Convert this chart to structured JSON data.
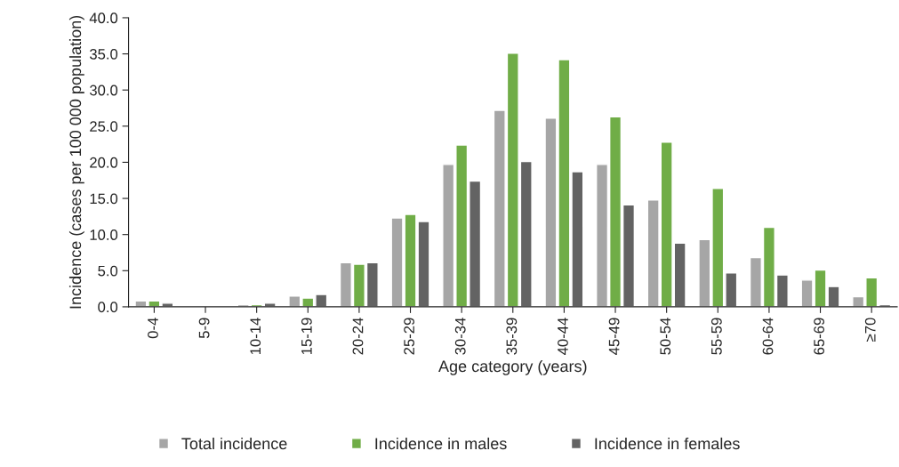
{
  "chart_data": {
    "type": "bar",
    "xlabel": "Age category (years)",
    "ylabel": "Incidence (cases per 100 000 population)",
    "categories": [
      "0-4",
      "5-9",
      "10-14",
      "15-19",
      "20-24",
      "25-29",
      "30-34",
      "35-39",
      "40-44",
      "45-49",
      "50-54",
      "55-59",
      "60-64",
      "65-69",
      "≥70"
    ],
    "series": [
      {
        "name": "Total incidence",
        "color": "#a6a6a6",
        "values": [
          0.8,
          null,
          0.3,
          1.5,
          6.1,
          12.3,
          19.7,
          27.2,
          26.1,
          19.7,
          14.8,
          9.3,
          6.8,
          3.7,
          1.4
        ]
      },
      {
        "name": "Incidence in males",
        "color": "#70ad47",
        "values": [
          0.8,
          null,
          0.3,
          1.2,
          5.9,
          12.8,
          22.4,
          35.1,
          34.2,
          26.3,
          22.8,
          16.4,
          11.0,
          5.1,
          4.0
        ]
      },
      {
        "name": "Incidence in females",
        "color": "#636363",
        "values": [
          0.5,
          null,
          0.5,
          1.7,
          6.1,
          11.8,
          17.4,
          20.1,
          18.7,
          14.1,
          8.8,
          4.7,
          4.4,
          2.8,
          0.3
        ]
      }
    ],
    "ylim": [
      0,
      40
    ],
    "yticks": [
      {
        "value": 0,
        "label": "0.0"
      },
      {
        "value": 5,
        "label": "5.0"
      },
      {
        "value": 10,
        "label": "10.0"
      },
      {
        "value": 15,
        "label": "15.0"
      },
      {
        "value": 20,
        "label": "20.0"
      },
      {
        "value": 25,
        "label": "25.0"
      },
      {
        "value": 30,
        "label": "30.0"
      },
      {
        "value": 35,
        "label": "35.0"
      },
      {
        "value": 40,
        "label": "40.0"
      }
    ],
    "grid": false,
    "legend": "bottom"
  }
}
